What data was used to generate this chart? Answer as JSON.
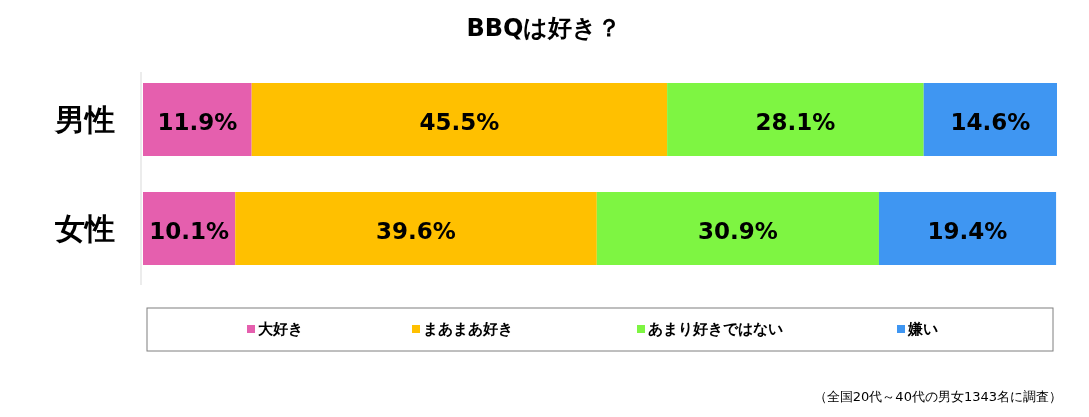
{
  "chart_data": {
    "type": "bar",
    "orientation": "horizontal",
    "stacked": true,
    "title": "BBQは好き？",
    "categories": [
      "男性",
      "女性"
    ],
    "series": [
      {
        "name": "大好き",
        "color": "#e55fae",
        "values": [
          11.9,
          10.1
        ],
        "value_labels": [
          "11.9%",
          "10.1%"
        ]
      },
      {
        "name": "まあまあ好き",
        "color": "#ffc000",
        "values": [
          45.5,
          39.6
        ],
        "value_labels": [
          "45.5%",
          "39.6%"
        ]
      },
      {
        "name": "あまり好きではない",
        "color": "#7ef542",
        "values": [
          28.1,
          30.9
        ],
        "value_labels": [
          "28.1%",
          "30.9%"
        ]
      },
      {
        "name": "嫌い",
        "color": "#3f96f2",
        "values": [
          14.6,
          19.4
        ],
        "value_labels": [
          "14.6%",
          "19.4%"
        ]
      }
    ],
    "legend": "bottom",
    "annotations": [
      "（全国20代～40代の男女1343名に調査）"
    ]
  }
}
